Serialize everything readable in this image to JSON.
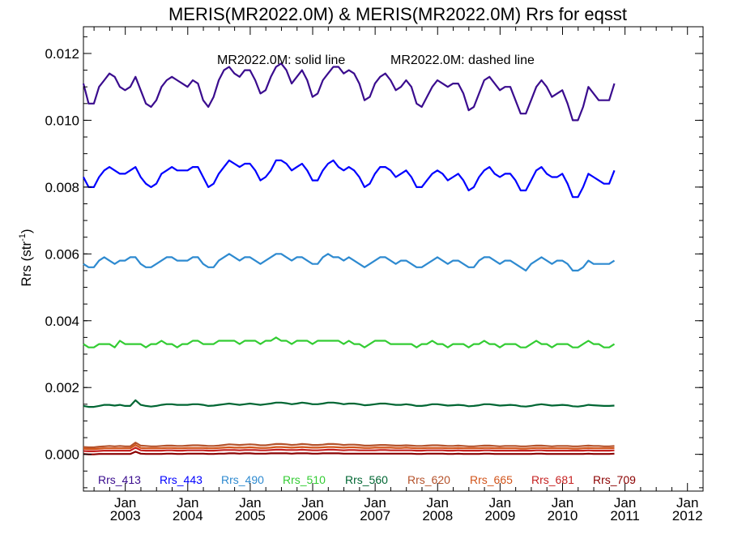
{
  "chart_data": {
    "type": "line",
    "title": "MERIS(MR2022.0M) & MERIS(MR2022.0M)  Rrs for eqsst",
    "ylabel_main": "Rrs (str",
    "ylabel_sup": "-1",
    "ylabel_close": ")",
    "annotation_solid": "MR2022.0M: solid line",
    "annotation_dashed": "MR2022.0M: dashed line",
    "ylim": [
      -0.0011,
      0.0128
    ],
    "xlim": [
      2002.33,
      2012.25
    ],
    "y_ticks": [
      {
        "value": 0.0,
        "label": "0.000"
      },
      {
        "value": 0.002,
        "label": "0.002"
      },
      {
        "value": 0.004,
        "label": "0.004"
      },
      {
        "value": 0.006,
        "label": "0.006"
      },
      {
        "value": 0.008,
        "label": "0.008"
      },
      {
        "value": 0.01,
        "label": "0.010"
      },
      {
        "value": 0.012,
        "label": "0.012"
      }
    ],
    "x_ticks": [
      {
        "value": 2003.0,
        "label1": "Jan",
        "label2": "2003"
      },
      {
        "value": 2004.0,
        "label1": "Jan",
        "label2": "2004"
      },
      {
        "value": 2005.0,
        "label1": "Jan",
        "label2": "2005"
      },
      {
        "value": 2006.0,
        "label1": "Jan",
        "label2": "2006"
      },
      {
        "value": 2007.0,
        "label1": "Jan",
        "label2": "2007"
      },
      {
        "value": 2008.0,
        "label1": "Jan",
        "label2": "2008"
      },
      {
        "value": 2009.0,
        "label1": "Jan",
        "label2": "2009"
      },
      {
        "value": 2010.0,
        "label1": "Jan",
        "label2": "2010"
      },
      {
        "value": 2011.0,
        "label1": "Jan",
        "label2": "2011"
      },
      {
        "value": 2012.0,
        "label1": "Jan",
        "label2": "2012"
      }
    ],
    "x_start": 2002.33,
    "x_step": 0.0833333,
    "series": [
      {
        "name": "Rrs_413",
        "color": "#3a0c8e",
        "values": [
          0.0111,
          0.0105,
          0.0105,
          0.011,
          0.0112,
          0.0114,
          0.0113,
          0.011,
          0.0109,
          0.011,
          0.0113,
          0.0109,
          0.0105,
          0.0104,
          0.0106,
          0.011,
          0.0112,
          0.0113,
          0.0112,
          0.0111,
          0.011,
          0.0112,
          0.0111,
          0.0106,
          0.0104,
          0.0107,
          0.0112,
          0.0115,
          0.0116,
          0.0114,
          0.0113,
          0.0115,
          0.0115,
          0.0112,
          0.0108,
          0.0109,
          0.0113,
          0.0116,
          0.0117,
          0.0115,
          0.0111,
          0.0113,
          0.0115,
          0.0112,
          0.0107,
          0.0108,
          0.0112,
          0.0114,
          0.0116,
          0.0116,
          0.0114,
          0.0115,
          0.0114,
          0.0111,
          0.0106,
          0.0107,
          0.0111,
          0.0113,
          0.0114,
          0.0112,
          0.0109,
          0.011,
          0.0112,
          0.011,
          0.0105,
          0.0104,
          0.0107,
          0.011,
          0.0112,
          0.0111,
          0.011,
          0.0111,
          0.0111,
          0.0108,
          0.0103,
          0.0104,
          0.0108,
          0.0112,
          0.0113,
          0.0111,
          0.0109,
          0.011,
          0.011,
          0.0106,
          0.0102,
          0.0102,
          0.0106,
          0.011,
          0.0112,
          0.011,
          0.0107,
          0.0108,
          0.0109,
          0.0105,
          0.01,
          0.01,
          0.0104,
          0.011,
          0.0108,
          0.0106,
          0.0106,
          0.0106,
          0.0111
        ]
      },
      {
        "name": "Rrs_443",
        "color": "#0000ff",
        "values": [
          0.0083,
          0.008,
          0.008,
          0.0083,
          0.0085,
          0.0086,
          0.0085,
          0.0084,
          0.0084,
          0.0085,
          0.0086,
          0.0083,
          0.0081,
          0.008,
          0.0081,
          0.0084,
          0.0085,
          0.0086,
          0.0085,
          0.0085,
          0.0085,
          0.0086,
          0.0086,
          0.0083,
          0.008,
          0.0081,
          0.0084,
          0.0086,
          0.0088,
          0.0087,
          0.0086,
          0.0087,
          0.0087,
          0.0085,
          0.0082,
          0.0083,
          0.0085,
          0.0088,
          0.0088,
          0.0087,
          0.0085,
          0.0086,
          0.0087,
          0.0085,
          0.0082,
          0.0082,
          0.0085,
          0.0087,
          0.0088,
          0.0086,
          0.0085,
          0.0086,
          0.0085,
          0.0083,
          0.008,
          0.0081,
          0.0084,
          0.0086,
          0.0086,
          0.0085,
          0.0083,
          0.0084,
          0.0085,
          0.0083,
          0.008,
          0.008,
          0.0082,
          0.0084,
          0.0085,
          0.0084,
          0.0082,
          0.0083,
          0.0084,
          0.0082,
          0.0079,
          0.008,
          0.0083,
          0.0085,
          0.0086,
          0.0084,
          0.0083,
          0.0084,
          0.0084,
          0.0082,
          0.0079,
          0.0079,
          0.0082,
          0.0085,
          0.0086,
          0.0084,
          0.0083,
          0.0083,
          0.0084,
          0.0081,
          0.0077,
          0.0077,
          0.008,
          0.0084,
          0.0083,
          0.0082,
          0.0081,
          0.0081,
          0.0085
        ]
      },
      {
        "name": "Rrs_490",
        "color": "#2e8ad0",
        "values": [
          0.0057,
          0.0056,
          0.0056,
          0.0058,
          0.0059,
          0.0058,
          0.0057,
          0.0058,
          0.0058,
          0.0059,
          0.0059,
          0.0057,
          0.0056,
          0.0056,
          0.0057,
          0.0058,
          0.0059,
          0.0059,
          0.0058,
          0.0058,
          0.0058,
          0.0059,
          0.0059,
          0.0057,
          0.0056,
          0.0056,
          0.0058,
          0.0059,
          0.006,
          0.0059,
          0.0058,
          0.0059,
          0.0059,
          0.0058,
          0.0057,
          0.0058,
          0.0059,
          0.006,
          0.006,
          0.0059,
          0.0058,
          0.0059,
          0.0059,
          0.0058,
          0.0057,
          0.0057,
          0.0059,
          0.006,
          0.0059,
          0.0059,
          0.0058,
          0.0059,
          0.0058,
          0.0057,
          0.0056,
          0.0057,
          0.0058,
          0.0059,
          0.0059,
          0.0058,
          0.0057,
          0.0058,
          0.0058,
          0.0057,
          0.0056,
          0.0056,
          0.0057,
          0.0058,
          0.0059,
          0.0058,
          0.0057,
          0.0058,
          0.0058,
          0.0057,
          0.0056,
          0.0056,
          0.0058,
          0.0059,
          0.0059,
          0.0058,
          0.0057,
          0.0058,
          0.0058,
          0.0057,
          0.0056,
          0.0055,
          0.0057,
          0.0058,
          0.0059,
          0.0058,
          0.0057,
          0.0058,
          0.0058,
          0.0057,
          0.0055,
          0.0055,
          0.0056,
          0.0058,
          0.0057,
          0.0057,
          0.0057,
          0.0057,
          0.0058
        ]
      },
      {
        "name": "Rrs_510",
        "color": "#33cc33",
        "values": [
          0.0033,
          0.0032,
          0.0032,
          0.0033,
          0.0033,
          0.0033,
          0.0032,
          0.0034,
          0.0033,
          0.0033,
          0.0033,
          0.0033,
          0.0032,
          0.0033,
          0.0033,
          0.0034,
          0.0033,
          0.0033,
          0.0032,
          0.0033,
          0.0033,
          0.0034,
          0.0034,
          0.0033,
          0.0033,
          0.0033,
          0.0034,
          0.0034,
          0.0034,
          0.0034,
          0.0033,
          0.0034,
          0.0034,
          0.0034,
          0.0033,
          0.0034,
          0.0034,
          0.0035,
          0.0034,
          0.0034,
          0.0033,
          0.0034,
          0.0034,
          0.0034,
          0.0033,
          0.0034,
          0.0034,
          0.0034,
          0.0034,
          0.0034,
          0.0033,
          0.0034,
          0.0033,
          0.0033,
          0.0032,
          0.0033,
          0.0034,
          0.0034,
          0.0034,
          0.0033,
          0.0033,
          0.0033,
          0.0033,
          0.0033,
          0.0032,
          0.0033,
          0.0033,
          0.0034,
          0.0033,
          0.0033,
          0.0032,
          0.0033,
          0.0033,
          0.0033,
          0.0032,
          0.0033,
          0.0033,
          0.0034,
          0.0033,
          0.0033,
          0.0032,
          0.0033,
          0.0033,
          0.0033,
          0.0032,
          0.0032,
          0.0033,
          0.0034,
          0.0033,
          0.0033,
          0.0032,
          0.0033,
          0.0033,
          0.0033,
          0.0032,
          0.0032,
          0.0033,
          0.0034,
          0.0033,
          0.0033,
          0.0032,
          0.0032,
          0.0033
        ]
      },
      {
        "name": "Rrs_560",
        "color": "#006633",
        "values": [
          0.00145,
          0.00142,
          0.00142,
          0.00145,
          0.00148,
          0.00148,
          0.00146,
          0.00148,
          0.00145,
          0.00145,
          0.00162,
          0.00148,
          0.00145,
          0.00143,
          0.00145,
          0.00148,
          0.0015,
          0.0015,
          0.00148,
          0.00148,
          0.00148,
          0.0015,
          0.0015,
          0.00148,
          0.00145,
          0.00146,
          0.00148,
          0.0015,
          0.00152,
          0.0015,
          0.00148,
          0.0015,
          0.00152,
          0.0015,
          0.00148,
          0.0015,
          0.00152,
          0.00155,
          0.00155,
          0.00153,
          0.0015,
          0.00152,
          0.00155,
          0.00153,
          0.0015,
          0.0015,
          0.00152,
          0.00155,
          0.00155,
          0.00153,
          0.0015,
          0.00152,
          0.00152,
          0.0015,
          0.00147,
          0.00148,
          0.0015,
          0.00152,
          0.00152,
          0.0015,
          0.00148,
          0.00148,
          0.0015,
          0.00148,
          0.00145,
          0.00145,
          0.00147,
          0.0015,
          0.0015,
          0.00148,
          0.00146,
          0.00147,
          0.00148,
          0.00147,
          0.00144,
          0.00145,
          0.00147,
          0.0015,
          0.0015,
          0.00148,
          0.00146,
          0.00147,
          0.00148,
          0.00147,
          0.00144,
          0.00143,
          0.00145,
          0.00148,
          0.0015,
          0.00148,
          0.00146,
          0.00147,
          0.00148,
          0.00147,
          0.00144,
          0.00143,
          0.00145,
          0.00148,
          0.00147,
          0.00146,
          0.00145,
          0.00145,
          0.00146
        ]
      },
      {
        "name": "Rrs_620",
        "color": "#b5522b",
        "values": [
          0.00022,
          0.00021,
          0.00021,
          0.00023,
          0.00024,
          0.00025,
          0.00024,
          0.00025,
          0.00024,
          0.00024,
          0.00035,
          0.00026,
          0.00025,
          0.00024,
          0.00024,
          0.00025,
          0.00026,
          0.00026,
          0.00025,
          0.00025,
          0.00026,
          0.00027,
          0.00027,
          0.00026,
          0.00025,
          0.00025,
          0.00026,
          0.00028,
          0.0003,
          0.00029,
          0.00028,
          0.00029,
          0.0003,
          0.00029,
          0.00027,
          0.00027,
          0.00029,
          0.00031,
          0.00031,
          0.0003,
          0.00028,
          0.00029,
          0.00031,
          0.0003,
          0.00028,
          0.00028,
          0.00029,
          0.00031,
          0.00031,
          0.0003,
          0.00028,
          0.00029,
          0.00029,
          0.00028,
          0.00026,
          0.00026,
          0.00027,
          0.00028,
          0.00028,
          0.00027,
          0.00026,
          0.00026,
          0.00027,
          0.00026,
          0.00025,
          0.00025,
          0.00026,
          0.00027,
          0.00027,
          0.00026,
          0.00025,
          0.00025,
          0.00026,
          0.00025,
          0.00024,
          0.00024,
          0.00025,
          0.00026,
          0.00026,
          0.00025,
          0.00024,
          0.00025,
          0.00025,
          0.00025,
          0.00024,
          0.00024,
          0.00025,
          0.00026,
          0.00026,
          0.00025,
          0.00024,
          0.00025,
          0.00025,
          0.00025,
          0.00024,
          0.00024,
          0.00025,
          0.00026,
          0.00025,
          0.00025,
          0.00024,
          0.00024,
          0.00025
        ]
      },
      {
        "name": "Rrs_665",
        "color": "#d2541a",
        "values": [
          0.00017,
          0.00016,
          0.00016,
          0.00017,
          0.00018,
          0.00018,
          0.00018,
          0.00018,
          0.00018,
          0.00018,
          0.00028,
          0.00019,
          0.00018,
          0.00018,
          0.00018,
          0.00018,
          0.00019,
          0.00019,
          0.00018,
          0.00018,
          0.00019,
          0.00019,
          0.00019,
          0.00019,
          0.00018,
          0.00018,
          0.00019,
          0.0002,
          0.00021,
          0.0002,
          0.0002,
          0.0002,
          0.00021,
          0.0002,
          0.00019,
          0.00019,
          0.0002,
          0.00022,
          0.00022,
          0.00021,
          0.0002,
          0.00021,
          0.00022,
          0.00021,
          0.0002,
          0.0002,
          0.00021,
          0.00022,
          0.00022,
          0.00021,
          0.0002,
          0.00021,
          0.00021,
          0.0002,
          0.00019,
          0.00019,
          0.0002,
          0.0002,
          0.0002,
          0.0002,
          0.00019,
          0.00019,
          0.0002,
          0.00019,
          0.00018,
          0.00018,
          0.00019,
          0.00019,
          0.00019,
          0.00019,
          0.00018,
          0.00018,
          0.00019,
          0.00018,
          0.00018,
          0.00018,
          0.00018,
          0.00019,
          0.00019,
          0.00018,
          0.00018,
          0.00018,
          0.00018,
          0.00018,
          0.00017,
          0.00017,
          0.00018,
          0.00019,
          0.00019,
          0.00018,
          0.00018,
          0.00018,
          0.00018,
          0.00018,
          0.00017,
          0.00017,
          0.00018,
          0.00019,
          0.00018,
          0.00018,
          0.00018,
          0.00018,
          0.00019
        ]
      },
      {
        "name": "Rrs_681",
        "color": "#c62222",
        "values": [
          0.0001,
          9e-05,
          9e-05,
          0.0001,
          0.00011,
          0.00011,
          0.00011,
          0.00011,
          0.00011,
          0.00011,
          0.0002,
          0.00012,
          0.00011,
          0.00011,
          0.00011,
          0.00011,
          0.00012,
          0.00012,
          0.00011,
          0.00011,
          0.00012,
          0.00012,
          0.00012,
          0.00012,
          0.00011,
          0.00011,
          0.00012,
          0.00013,
          0.00013,
          0.00013,
          0.00012,
          0.00013,
          0.00013,
          0.00013,
          0.00012,
          0.00012,
          0.00013,
          0.00014,
          0.00014,
          0.00013,
          0.00013,
          0.00013,
          0.00014,
          0.00013,
          0.00012,
          0.00012,
          0.00013,
          0.00014,
          0.00014,
          0.00013,
          0.00012,
          0.00013,
          0.00013,
          0.00012,
          0.00012,
          0.00012,
          0.00012,
          0.00013,
          0.00013,
          0.00012,
          0.00012,
          0.00012,
          0.00012,
          0.00012,
          0.00011,
          0.00011,
          0.00012,
          0.00012,
          0.00012,
          0.00012,
          0.00011,
          0.00011,
          0.00012,
          0.00011,
          0.00011,
          0.00011,
          0.00011,
          0.00012,
          0.00012,
          0.00011,
          0.00011,
          0.00011,
          0.00011,
          0.00011,
          0.00011,
          0.00011,
          0.00011,
          0.00012,
          0.00012,
          0.00011,
          0.00011,
          0.00011,
          0.00011,
          0.00011,
          0.00011,
          0.00011,
          0.00011,
          0.00012,
          0.00011,
          0.00011,
          0.00011,
          0.00011,
          0.00012
        ]
      },
      {
        "name": "Rrs_709",
        "color": "#8b0000",
        "values": [
          1e-05,
          0.0,
          0.0,
          1e-05,
          1e-05,
          1e-05,
          1e-05,
          1e-05,
          1e-05,
          1e-05,
          8e-05,
          2e-05,
          1e-05,
          1e-05,
          1e-05,
          1e-05,
          2e-05,
          2e-05,
          1e-05,
          1e-05,
          2e-05,
          2e-05,
          2e-05,
          2e-05,
          1e-05,
          1e-05,
          2e-05,
          2e-05,
          3e-05,
          3e-05,
          2e-05,
          3e-05,
          3e-05,
          2e-05,
          2e-05,
          2e-05,
          3e-05,
          3e-05,
          3e-05,
          3e-05,
          2e-05,
          3e-05,
          3e-05,
          3e-05,
          2e-05,
          2e-05,
          3e-05,
          3e-05,
          3e-05,
          3e-05,
          2e-05,
          2e-05,
          2e-05,
          2e-05,
          2e-05,
          2e-05,
          2e-05,
          2e-05,
          2e-05,
          2e-05,
          2e-05,
          2e-05,
          2e-05,
          2e-05,
          1e-05,
          1e-05,
          2e-05,
          2e-05,
          2e-05,
          2e-05,
          1e-05,
          1e-05,
          2e-05,
          1e-05,
          1e-05,
          1e-05,
          1e-05,
          2e-05,
          2e-05,
          1e-05,
          1e-05,
          1e-05,
          1e-05,
          1e-05,
          1e-05,
          1e-05,
          1e-05,
          2e-05,
          2e-05,
          1e-05,
          1e-05,
          1e-05,
          1e-05,
          1e-05,
          1e-05,
          1e-05,
          1e-05,
          2e-05,
          1e-05,
          1e-05,
          1e-05,
          1e-05,
          2e-05
        ]
      }
    ]
  }
}
